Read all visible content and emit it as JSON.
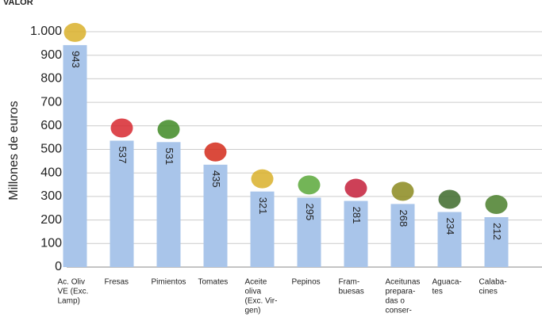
{
  "chart_data": {
    "type": "bar",
    "title": "VALOR",
    "y_label": "Millones de euros",
    "categories": [
      [
        "Ac. Oliv",
        "VE (Exc.",
        "Lamp)"
      ],
      [
        "Fresas"
      ],
      [
        "Pimientos"
      ],
      [
        "Tomates"
      ],
      [
        "Aceite",
        "oliva",
        "(Exc. Vir-",
        "gen)"
      ],
      [
        "Pepinos"
      ],
      [
        "Fram-",
        "buesas"
      ],
      [
        "Aceitunas",
        "prepara-",
        "das o",
        "conser-"
      ],
      [
        "Aguaca-",
        "tes"
      ],
      [
        "Calaba-",
        "cines"
      ]
    ],
    "values": [
      943,
      537,
      531,
      435,
      321,
      295,
      281,
      268,
      234,
      212
    ],
    "color": "#a9c5ea",
    "ylim": [
      0,
      1000
    ],
    "yticks": [
      0,
      100,
      200,
      300,
      400,
      500,
      600,
      700,
      800,
      900,
      {
        "value": 1000,
        "label": "1.000"
      }
    ],
    "grid": true
  }
}
